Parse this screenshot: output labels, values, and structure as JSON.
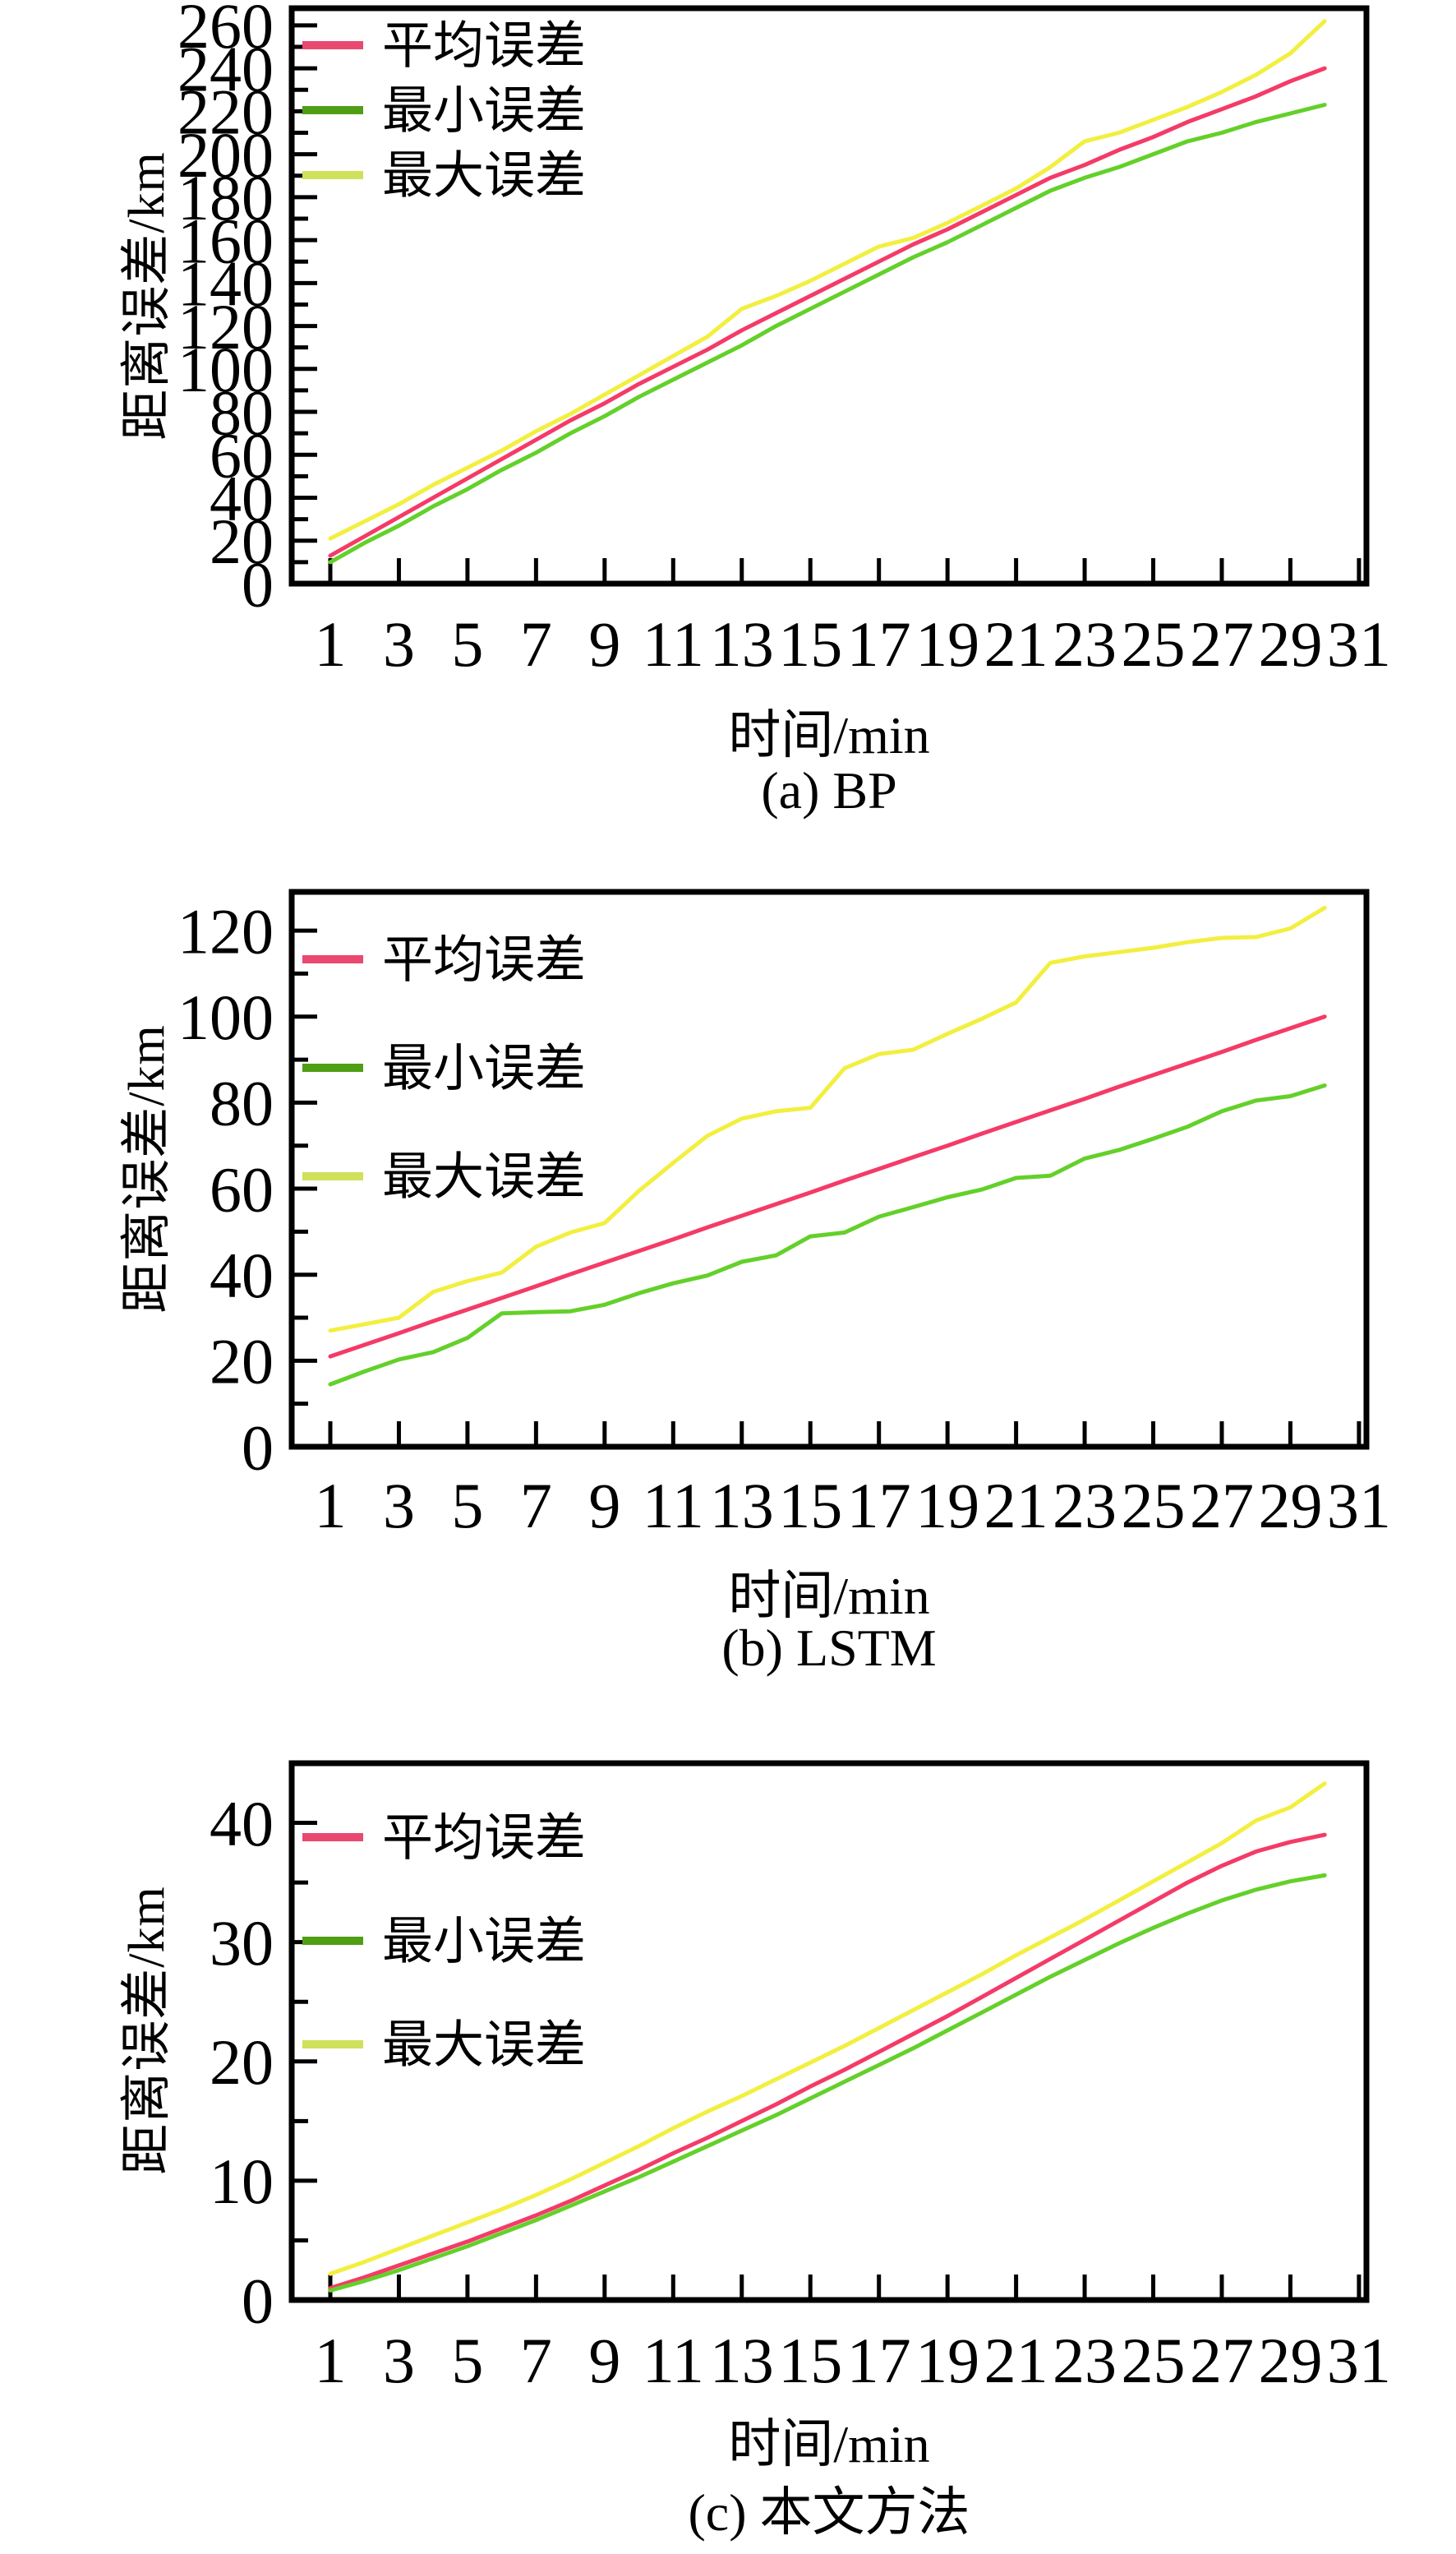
{
  "page": {
    "background": "#ffffff",
    "axis_color": "#000000"
  },
  "chart_data": [
    {
      "type": "line",
      "id": "bp",
      "caption": "(a) BP",
      "xlabel": "时间/min",
      "ylabel": "距离误差/km",
      "xlim": [
        -0.15,
        31.2
      ],
      "ylim": [
        0,
        268
      ],
      "grid": false,
      "legend_position": "top-left-inside",
      "xticks": [
        1,
        3,
        5,
        7,
        9,
        11,
        13,
        15,
        17,
        19,
        21,
        23,
        25,
        27,
        29,
        31
      ],
      "yticks_major": [
        0,
        20,
        40,
        60,
        80,
        100,
        120,
        140,
        160,
        180,
        200,
        220,
        240,
        260
      ],
      "yticks_minor": [
        10,
        30,
        50,
        70,
        90,
        110,
        130,
        150,
        170,
        190,
        210,
        230,
        250
      ],
      "x": [
        1,
        2,
        3,
        4,
        5,
        6,
        7,
        8,
        9,
        10,
        11,
        12,
        13,
        14,
        15,
        16,
        17,
        18,
        19,
        20,
        21,
        22,
        23,
        24,
        25,
        26,
        27,
        28,
        29,
        30
      ],
      "series": [
        {
          "name": "平均误差",
          "role": "mean",
          "color": "#f43b67",
          "legend_color": "#e9486f",
          "values": [
            13,
            22,
            31,
            40,
            49,
            58,
            67,
            76,
            84,
            93,
            101,
            109,
            118,
            126,
            134,
            142,
            150,
            158,
            165,
            173,
            181,
            189,
            195,
            202,
            208,
            215,
            221,
            227,
            234,
            240
          ]
        },
        {
          "name": "最小误差",
          "role": "min",
          "color": "#64d02a",
          "legend_color": "#4f9e13",
          "values": [
            10,
            19,
            27,
            36,
            44,
            53,
            61,
            70,
            78,
            87,
            95,
            103,
            111,
            120,
            128,
            136,
            144,
            152,
            159,
            167,
            175,
            183,
            189,
            194,
            200,
            206,
            210,
            215,
            219,
            223
          ]
        },
        {
          "name": "最大误差",
          "role": "max",
          "color": "#f2ef40",
          "legend_color": "#cfe05a",
          "values": [
            21,
            29,
            37,
            46,
            54,
            62,
            71,
            79,
            88,
            97,
            106,
            115,
            128,
            134,
            141,
            149,
            157,
            161,
            168,
            176,
            184,
            194,
            206,
            210,
            216,
            222,
            229,
            237,
            247,
            262
          ]
        }
      ]
    },
    {
      "type": "line",
      "id": "lstm",
      "caption": "(b) LSTM",
      "xlabel": "时间/min",
      "ylabel": "距离误差/km",
      "xlim": [
        -0.15,
        31.2
      ],
      "ylim": [
        0,
        129
      ],
      "grid": false,
      "legend_position": "top-left-inside",
      "xticks": [
        1,
        3,
        5,
        7,
        9,
        11,
        13,
        15,
        17,
        19,
        21,
        23,
        25,
        27,
        29,
        31
      ],
      "yticks_major": [
        0,
        20,
        40,
        60,
        80,
        100,
        120
      ],
      "yticks_minor": [
        10,
        30,
        50,
        70,
        90,
        110
      ],
      "x": [
        1,
        2,
        3,
        4,
        5,
        6,
        7,
        8,
        9,
        10,
        11,
        12,
        13,
        14,
        15,
        16,
        17,
        18,
        19,
        20,
        21,
        22,
        23,
        24,
        25,
        26,
        27,
        28,
        29,
        30
      ],
      "series": [
        {
          "name": "平均误差",
          "role": "mean",
          "color": "#f43b67",
          "legend_color": "#e9486f",
          "values": [
            21,
            23.7,
            26.4,
            29.2,
            31.9,
            34.6,
            37.3,
            40.1,
            42.8,
            45.5,
            48.2,
            51,
            53.7,
            56.4,
            59.1,
            61.9,
            64.6,
            67.3,
            70,
            72.8,
            75.5,
            78.2,
            80.9,
            83.7,
            86.4,
            89.1,
            91.8,
            94.6,
            97.3,
            100
          ]
        },
        {
          "name": "最小误差",
          "role": "min",
          "color": "#64d02a",
          "legend_color": "#4f9e13",
          "values": [
            14.5,
            17.5,
            20.3,
            22,
            25.3,
            31,
            31.3,
            31.5,
            33,
            35.7,
            38,
            39.8,
            43,
            44.5,
            48.9,
            49.8,
            53.5,
            55.7,
            58,
            59.8,
            62.5,
            63,
            67,
            69,
            71.6,
            74.4,
            78,
            80.5,
            81.5,
            84
          ]
        },
        {
          "name": "最大误差",
          "role": "max",
          "color": "#f2ef40",
          "legend_color": "#cfe05a",
          "values": [
            27,
            28.5,
            30,
            36,
            38.5,
            40.5,
            46.5,
            49.8,
            52,
            59.5,
            66,
            72.3,
            76.3,
            78,
            78.8,
            88,
            91.3,
            92.3,
            96,
            99.5,
            103.3,
            112.5,
            114,
            115,
            116,
            117.3,
            118.3,
            118.5,
            120.5,
            125.3
          ]
        }
      ]
    },
    {
      "type": "line",
      "id": "proposed",
      "caption": "(c) 本文方法",
      "xlabel": "时间/min",
      "ylabel": "距离误差/km",
      "xlim": [
        -0.15,
        31.2
      ],
      "ylim": [
        0,
        45
      ],
      "grid": false,
      "legend_position": "top-left-inside",
      "xticks": [
        1,
        3,
        5,
        7,
        9,
        11,
        13,
        15,
        17,
        19,
        21,
        23,
        25,
        27,
        29,
        31
      ],
      "yticks_major": [
        0,
        10,
        20,
        30,
        40
      ],
      "yticks_minor": [
        5,
        15,
        25,
        35
      ],
      "x": [
        1,
        2,
        3,
        4,
        5,
        6,
        7,
        8,
        9,
        10,
        11,
        12,
        13,
        14,
        15,
        16,
        17,
        18,
        19,
        20,
        21,
        22,
        23,
        24,
        25,
        26,
        27,
        28,
        29,
        30
      ],
      "series": [
        {
          "name": "平均误差",
          "role": "mean",
          "color": "#f43b67",
          "legend_color": "#e9486f",
          "values": [
            1,
            1.9,
            2.9,
            3.9,
            4.9,
            6,
            7.1,
            8.3,
            9.6,
            10.9,
            12.3,
            13.6,
            15,
            16.4,
            17.9,
            19.3,
            20.8,
            22.3,
            23.8,
            25.4,
            27,
            28.6,
            30.2,
            31.8,
            33.4,
            35,
            36.4,
            37.6,
            38.4,
            39
          ]
        },
        {
          "name": "最小误差",
          "role": "min",
          "color": "#64d02a",
          "legend_color": "#4f9e13",
          "values": [
            0.8,
            1.6,
            2.5,
            3.5,
            4.5,
            5.6,
            6.7,
            7.9,
            9.1,
            10.3,
            11.6,
            12.9,
            14.2,
            15.5,
            16.9,
            18.3,
            19.7,
            21.1,
            22.6,
            24.1,
            25.6,
            27.1,
            28.5,
            29.9,
            31.2,
            32.4,
            33.5,
            34.4,
            35.1,
            35.6
          ]
        },
        {
          "name": "最大误差",
          "role": "max",
          "color": "#f2ef40",
          "legend_color": "#cfe05a",
          "values": [
            2.2,
            3.2,
            4.3,
            5.4,
            6.5,
            7.6,
            8.8,
            10.1,
            11.5,
            12.9,
            14.4,
            15.8,
            17.1,
            18.5,
            19.9,
            21.3,
            22.8,
            24.3,
            25.8,
            27.3,
            28.9,
            30.4,
            31.9,
            33.5,
            35.1,
            36.7,
            38.3,
            40.2,
            41.3,
            43.3
          ]
        }
      ]
    }
  ]
}
